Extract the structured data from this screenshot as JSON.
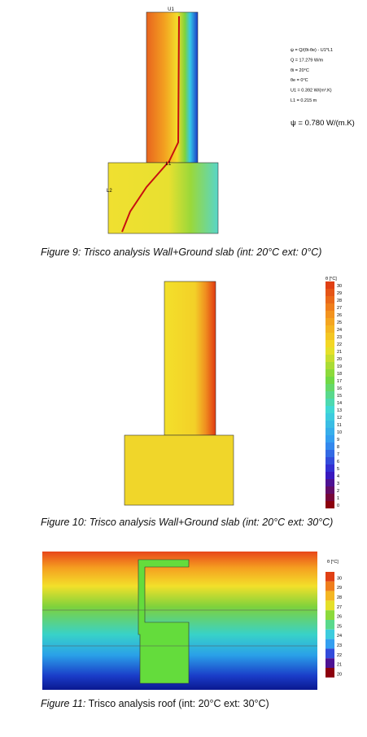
{
  "figure9": {
    "labels": {
      "u1": "U1",
      "l1": "L1",
      "l2": "L2"
    },
    "formula": [
      "ψ = Q/(θi-θe) - U1*L1",
      "Q = 17.279 W/m",
      "θi = 20°C",
      "θe = 0°C",
      "U1 = 0.392 W/(m².K)",
      "L1 = 0.215 m"
    ],
    "result": "ψ = 0.780 W/(m.K)",
    "caption": "Figure 9: Trisco analysis Wall+Ground slab (int: 20°C ext: 0°C)"
  },
  "figure10": {
    "legend_title": "θ [°C]",
    "legend": [
      30,
      29,
      28,
      27,
      26,
      25,
      24,
      23,
      22,
      21,
      20,
      19,
      18,
      17,
      16,
      15,
      14,
      13,
      12,
      11,
      10,
      9,
      8,
      7,
      6,
      5,
      4,
      3,
      2,
      1,
      0
    ],
    "caption": "Figure 10: Trisco analysis Wall+Ground slab (int: 20°C ext: 30°C)"
  },
  "figure11": {
    "legend_title": "θ [°C]",
    "legend": [
      30,
      29,
      28,
      27,
      26,
      25,
      24,
      23,
      22,
      21,
      20
    ],
    "caption_label": "Figure 11:",
    "caption_text": " Trisco analysis roof (int: 20°C ext: 30°C)"
  }
}
